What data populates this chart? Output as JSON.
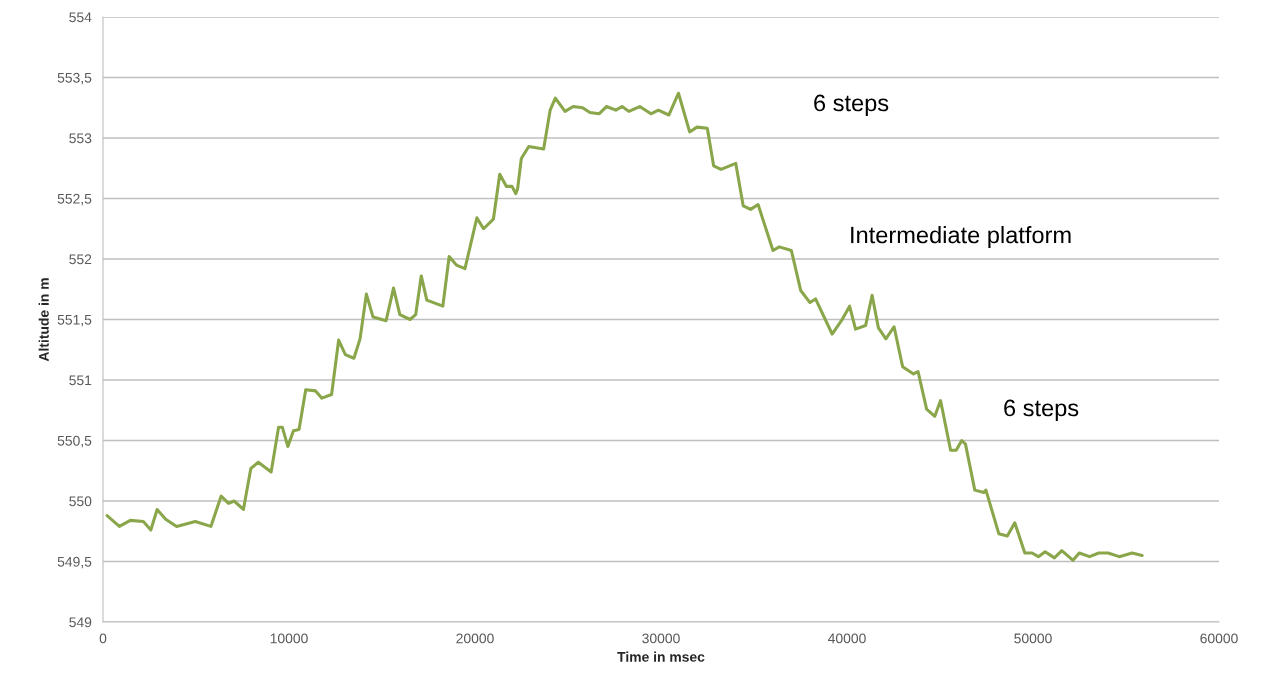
{
  "chart_data": {
    "type": "line",
    "xlabel": "Time in msec",
    "ylabel": "Altitude in m",
    "xlim": [
      0,
      60000
    ],
    "xticks": [
      0,
      10000,
      20000,
      30000,
      40000,
      50000,
      60000
    ],
    "ylim": [
      549,
      554
    ],
    "yticks": [
      {
        "value": 549,
        "label": "549"
      },
      {
        "value": 549.5,
        "label": "549,5"
      },
      {
        "value": 550,
        "label": "550"
      },
      {
        "value": 550.5,
        "label": "550,5"
      },
      {
        "value": 551,
        "label": "551"
      },
      {
        "value": 551.5,
        "label": "551,5"
      },
      {
        "value": 552,
        "label": "552"
      },
      {
        "value": 552.5,
        "label": "552,5"
      },
      {
        "value": 553,
        "label": "553"
      },
      {
        "value": 553.5,
        "label": "553,5"
      },
      {
        "value": 554,
        "label": "554"
      }
    ],
    "grid": "y",
    "marker": "none",
    "line_style": "solid",
    "annotations": [
      "6 steps",
      "Intermediate platform",
      "6 steps"
    ],
    "series": [
      {
        "color": "#8aa64a",
        "x": [
          220,
          880,
          1470,
          2170,
          2570,
          2910,
          3370,
          3960,
          4960,
          5800,
          6350,
          6750,
          7050,
          7550,
          7950,
          8350,
          9040,
          9440,
          9640,
          9940,
          10240,
          10540,
          10900,
          11430,
          11770,
          12290,
          12670,
          13030,
          13490,
          13820,
          14160,
          14520,
          15220,
          15620,
          15960,
          16510,
          16810,
          17110,
          17410,
          18270,
          18610,
          19000,
          19460,
          20100,
          20460,
          20990,
          21330,
          21690,
          21990,
          22190,
          22290,
          22490,
          22890,
          23690,
          24040,
          24320,
          24840,
          25280,
          25780,
          26180,
          26670,
          27070,
          27570,
          27910,
          28270,
          28860,
          29460,
          29860,
          30420,
          30940,
          31540,
          31930,
          32490,
          32830,
          33230,
          34020,
          34420,
          34820,
          35220,
          36020,
          36360,
          37010,
          37510,
          38010,
          38310,
          39200,
          39700,
          40140,
          40460,
          41000,
          41350,
          41690,
          42090,
          42530,
          42990,
          43580,
          43820,
          44280,
          44720,
          45030,
          45570,
          45870,
          46170,
          46370,
          46870,
          47360,
          47470,
          48160,
          48620,
          49020,
          49560,
          49950,
          50290,
          50650,
          51150,
          51550,
          52150,
          52490,
          53040,
          53540,
          54040,
          54640,
          55330,
          55870
        ],
        "values": [
          549.88,
          549.79,
          549.84,
          549.83,
          549.76,
          549.93,
          549.85,
          549.79,
          549.83,
          549.79,
          550.04,
          549.98,
          550.0,
          549.93,
          550.27,
          550.32,
          550.24,
          550.61,
          550.61,
          550.45,
          550.58,
          550.59,
          550.92,
          550.91,
          550.85,
          550.88,
          551.33,
          551.21,
          551.18,
          551.34,
          551.71,
          551.52,
          551.49,
          551.76,
          551.54,
          551.5,
          551.54,
          551.86,
          551.66,
          551.61,
          552.02,
          551.95,
          551.92,
          552.34,
          552.25,
          552.33,
          552.7,
          552.6,
          552.6,
          552.54,
          552.58,
          552.83,
          552.93,
          552.91,
          553.23,
          553.33,
          553.22,
          553.26,
          553.25,
          553.21,
          553.2,
          553.26,
          553.23,
          553.26,
          553.22,
          553.26,
          553.2,
          553.23,
          553.19,
          553.37,
          553.05,
          553.09,
          553.08,
          552.77,
          552.74,
          552.79,
          552.44,
          552.41,
          552.45,
          552.07,
          552.1,
          552.07,
          551.74,
          551.64,
          551.67,
          551.38,
          551.49,
          551.61,
          551.42,
          551.45,
          551.7,
          551.43,
          551.34,
          551.44,
          551.11,
          551.05,
          551.07,
          550.76,
          550.7,
          550.83,
          550.42,
          550.42,
          550.5,
          550.47,
          550.09,
          550.07,
          550.09,
          549.73,
          549.71,
          549.82,
          549.57,
          549.57,
          549.54,
          549.58,
          549.53,
          549.59,
          549.51,
          549.57,
          549.54,
          549.57,
          549.57,
          549.54,
          549.57,
          549.55
        ]
      }
    ]
  }
}
